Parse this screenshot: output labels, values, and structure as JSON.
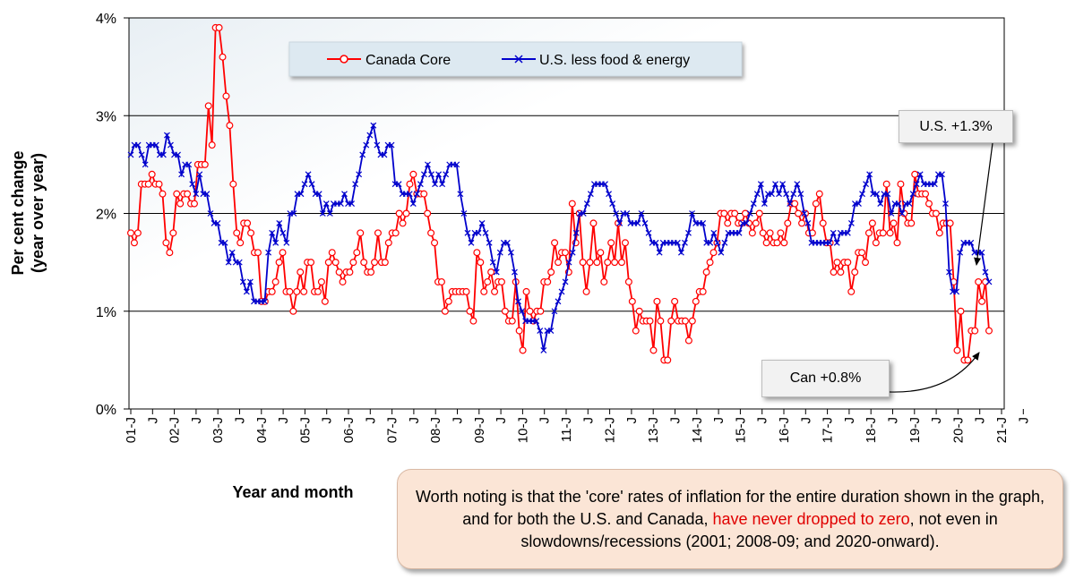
{
  "chart_data": {
    "type": "line",
    "ylabel": "Per cent change\n(year over year)",
    "xlabel": "Year and month",
    "ylim": [
      0,
      4
    ],
    "y_ticks": [
      "0%",
      "1%",
      "2%",
      "3%",
      "4%"
    ],
    "x_tick_labels": [
      "01-J",
      "J",
      "02-J",
      "J",
      "03-J",
      "J",
      "04-J",
      "J",
      "05-J",
      "J",
      "06-J",
      "J",
      "07-J",
      "J",
      "08-J",
      "J",
      "09-J",
      "J",
      "10-J",
      "J",
      "11-J",
      "J",
      "12-J",
      "J",
      "13-J",
      "J",
      "14-J",
      "J",
      "15-J",
      "J",
      "16-J",
      "J",
      "17-J",
      "J",
      "18-J",
      "J",
      "19-J",
      "J",
      "20-J",
      "J",
      "21-J",
      "J"
    ],
    "x_start": "2001-01",
    "x_end": "2021-03",
    "legend_position": "top-center",
    "grid": "horizontal",
    "series": [
      {
        "name": "Canada Core",
        "color": "#ff0000",
        "marker": "circle",
        "values": [
          1.8,
          1.7,
          1.8,
          2.3,
          2.3,
          2.3,
          2.4,
          2.3,
          2.3,
          2.2,
          1.7,
          1.6,
          1.8,
          2.2,
          2.1,
          2.2,
          2.2,
          2.1,
          2.1,
          2.5,
          2.5,
          2.5,
          3.1,
          2.7,
          3.9,
          3.9,
          3.6,
          3.2,
          2.9,
          2.3,
          1.8,
          1.7,
          1.9,
          1.9,
          1.8,
          1.6,
          1.6,
          1.1,
          1.1,
          1.2,
          1.2,
          1.3,
          1.5,
          1.6,
          1.2,
          1.2,
          1.0,
          1.2,
          1.4,
          1.2,
          1.5,
          1.5,
          1.2,
          1.2,
          1.3,
          1.1,
          1.5,
          1.6,
          1.5,
          1.4,
          1.3,
          1.4,
          1.4,
          1.5,
          1.6,
          1.8,
          1.5,
          1.4,
          1.4,
          1.5,
          1.8,
          1.5,
          1.5,
          1.7,
          1.8,
          1.8,
          2.0,
          1.9,
          2.0,
          2.3,
          2.4,
          2.2,
          2.2,
          2.2,
          2.0,
          1.8,
          1.7,
          1.3,
          1.3,
          1.0,
          1.1,
          1.2,
          1.2,
          1.2,
          1.2,
          1.2,
          1.0,
          0.9,
          1.6,
          1.5,
          1.2,
          1.3,
          1.4,
          1.2,
          1.3,
          1.3,
          1.0,
          0.9,
          0.9,
          1.3,
          0.8,
          0.6,
          1.2,
          1.0,
          0.9,
          1.0,
          1.0,
          1.3,
          1.3,
          1.4,
          1.7,
          1.5,
          1.6,
          1.6,
          1.4,
          2.1,
          1.7,
          2.0,
          1.5,
          1.2,
          1.5,
          1.9,
          1.5,
          1.6,
          1.3,
          1.5,
          1.7,
          1.5,
          1.9,
          1.5,
          1.7,
          1.3,
          1.1,
          0.8,
          1.0,
          0.9,
          0.9,
          0.9,
          0.6,
          1.1,
          0.9,
          0.5,
          0.5,
          0.9,
          1.1,
          0.9,
          0.9,
          0.9,
          0.7,
          0.9,
          1.1,
          1.2,
          1.2,
          1.4,
          1.5,
          1.6,
          1.7,
          2.0,
          2.0,
          1.9,
          2.0,
          2.0,
          1.9,
          1.9,
          2.0,
          1.9,
          1.8,
          1.9,
          2.0,
          1.8,
          1.7,
          1.8,
          1.7,
          1.7,
          1.8,
          1.7,
          1.9,
          2.1,
          2.1,
          2.0,
          1.9,
          2.0,
          1.8,
          1.8,
          2.1,
          2.2,
          1.9,
          1.7,
          1.7,
          1.4,
          1.5,
          1.4,
          1.5,
          1.5,
          1.2,
          1.4,
          1.6,
          1.6,
          1.5,
          1.8,
          1.9,
          1.7,
          1.8,
          1.8,
          2.3,
          1.8,
          1.9,
          1.7,
          2.3,
          2.0,
          1.9,
          1.9,
          2.4,
          2.2,
          2.2,
          2.2,
          2.1,
          2.0,
          2.0,
          1.8,
          1.9,
          1.9,
          1.9,
          1.3,
          0.6,
          1.0,
          0.5,
          0.5,
          0.8,
          0.8,
          1.3,
          1.1,
          1.3,
          0.8
        ]
      },
      {
        "name": "U.S. less food & energy",
        "color": "#0000cc",
        "marker": "x",
        "values": [
          2.6,
          2.7,
          2.7,
          2.6,
          2.5,
          2.7,
          2.7,
          2.7,
          2.6,
          2.6,
          2.8,
          2.7,
          2.6,
          2.6,
          2.4,
          2.5,
          2.5,
          2.3,
          2.2,
          2.4,
          2.2,
          2.2,
          2.0,
          1.9,
          1.9,
          1.7,
          1.7,
          1.5,
          1.6,
          1.5,
          1.5,
          1.3,
          1.2,
          1.3,
          1.1,
          1.1,
          1.1,
          1.1,
          1.6,
          1.8,
          1.7,
          1.9,
          1.8,
          1.7,
          2.0,
          2.0,
          2.2,
          2.2,
          2.3,
          2.4,
          2.3,
          2.2,
          2.2,
          2.0,
          2.1,
          2.0,
          2.1,
          2.1,
          2.1,
          2.2,
          2.1,
          2.1,
          2.3,
          2.4,
          2.6,
          2.7,
          2.8,
          2.9,
          2.7,
          2.6,
          2.6,
          2.7,
          2.7,
          2.3,
          2.3,
          2.2,
          2.2,
          2.2,
          2.1,
          2.2,
          2.3,
          2.4,
          2.5,
          2.4,
          2.3,
          2.4,
          2.3,
          2.4,
          2.5,
          2.5,
          2.5,
          2.2,
          2.0,
          1.8,
          1.7,
          1.8,
          1.8,
          1.9,
          1.8,
          1.7,
          1.5,
          1.4,
          1.6,
          1.7,
          1.7,
          1.6,
          1.4,
          1.1,
          1.0,
          0.9,
          0.9,
          0.9,
          0.9,
          0.8,
          0.6,
          0.8,
          0.8,
          1.0,
          1.1,
          1.2,
          1.3,
          1.5,
          1.6,
          1.8,
          2.0,
          2.0,
          2.1,
          2.2,
          2.3,
          2.3,
          2.3,
          2.3,
          2.2,
          2.1,
          2.0,
          1.9,
          2.0,
          2.0,
          1.9,
          1.9,
          1.9,
          2.0,
          1.9,
          1.8,
          1.7,
          1.7,
          1.6,
          1.7,
          1.7,
          1.7,
          1.7,
          1.7,
          1.6,
          1.7,
          1.8,
          2.0,
          1.9,
          1.9,
          1.9,
          1.7,
          1.7,
          1.8,
          1.7,
          1.6,
          1.7,
          1.8,
          1.8,
          1.8,
          1.8,
          1.9,
          1.9,
          2.0,
          2.1,
          2.2,
          2.3,
          2.1,
          2.2,
          2.2,
          2.3,
          2.2,
          2.3,
          2.2,
          2.1,
          2.2,
          2.3,
          2.2,
          2.0,
          1.9,
          1.7,
          1.7,
          1.7,
          1.7,
          1.7,
          1.7,
          1.8,
          1.7,
          1.8,
          1.8,
          1.8,
          1.9,
          2.1,
          2.1,
          2.2,
          2.3,
          2.4,
          2.2,
          2.2,
          2.1,
          2.2,
          2.2,
          2.0,
          2.1,
          2.1,
          2.0,
          2.1,
          2.1,
          2.2,
          2.3,
          2.4,
          2.3,
          2.3,
          2.3,
          2.3,
          2.4,
          2.4,
          2.1,
          1.4,
          1.2,
          1.2,
          1.6,
          1.7,
          1.7,
          1.7,
          1.6,
          1.6,
          1.6,
          1.4,
          1.3
        ]
      }
    ],
    "annotations": [
      {
        "text": "U.S. +1.3%"
      },
      {
        "text": "Can +0.8%"
      }
    ]
  },
  "note": {
    "text_before": "Worth noting is that the 'core' rates of inflation for the entire duration shown in the graph, and for both the U.S. and Canada, ",
    "text_highlight": "have never dropped to zero",
    "text_after": ", not even in slowdowns/recessions (2001; 2008-09; and 2020-onward)."
  },
  "colors": {
    "plot_background": "#ffffff",
    "legend_background": "#dde9f1",
    "note_background": "#fbe5d6",
    "highlight": "#e00000"
  }
}
